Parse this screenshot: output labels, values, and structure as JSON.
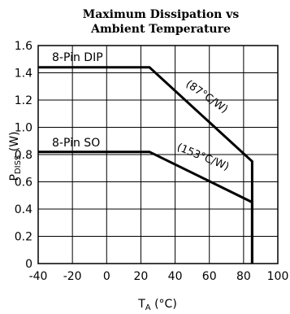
{
  "chart_data": {
    "type": "line",
    "title_line1": "Maximum Dissipation vs",
    "title_line2": "Ambient Temperature",
    "xlabel_main": "T",
    "xlabel_sub": "A",
    "xlabel_unit": "(°C)",
    "ylabel_main": "P",
    "ylabel_sub": "DISS",
    "ylabel_unit": "(W)",
    "xlim": [
      -40,
      100
    ],
    "ylim": [
      0,
      1.6
    ],
    "xticks": [
      -40,
      -20,
      0,
      20,
      40,
      60,
      80,
      100
    ],
    "yticks": [
      0,
      0.2,
      0.4,
      0.6,
      0.8,
      1.0,
      1.2,
      1.4,
      1.6
    ],
    "ytick_labels": [
      "0",
      "0.2",
      "0.4",
      "0.6",
      "0.8",
      "1.0",
      "1.2",
      "1.4",
      "1.6"
    ],
    "grid": true,
    "series": [
      {
        "name": "8-Pin DIP",
        "annotation": "(87°C/W)",
        "x": [
          -40,
          25,
          85,
          85
        ],
        "y": [
          1.44,
          1.44,
          0.75,
          0
        ]
      },
      {
        "name": "8-Pin SO",
        "annotation": "(153°C/W)",
        "x": [
          -40,
          25,
          85,
          85
        ],
        "y": [
          0.82,
          0.82,
          0.45,
          0
        ]
      }
    ]
  }
}
